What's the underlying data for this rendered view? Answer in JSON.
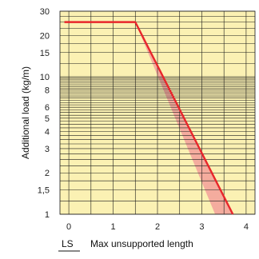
{
  "chart_data": {
    "type": "line",
    "ylabel": "Additional load (kg/m)",
    "x_symbol": "LS",
    "x_caption": "Max unsupported length",
    "xlim": [
      -0.2,
      4.2
    ],
    "ylim": [
      1,
      30
    ],
    "y_scale": "log",
    "grid": true,
    "x_ticks": [
      0,
      1,
      2,
      3,
      4
    ],
    "x_tick_labels": [
      "0",
      "1",
      "2",
      "3",
      "4"
    ],
    "y_ticks": [
      1,
      1.5,
      2,
      3,
      4,
      5,
      6,
      8,
      10,
      15,
      20,
      30
    ],
    "y_tick_labels": [
      "1",
      "1,5",
      "2",
      "3",
      "4",
      "5",
      "6",
      "8",
      "10",
      "15",
      "20",
      "30"
    ],
    "series": [
      {
        "values_x": [
          -0.1,
          1.5,
          3.7
        ],
        "values_y": [
          25,
          25,
          1
        ],
        "color": "#e8262b"
      }
    ],
    "band": {
      "x_upper": [
        1.5,
        3.7
      ],
      "y_upper": [
        25,
        1
      ],
      "x_lower": [
        1.5,
        3.3
      ],
      "y_lower": [
        25,
        1
      ],
      "color": "#f2a09a"
    },
    "colors": {
      "plot_background": "#fbf1b3",
      "grid": "#1a1a1a"
    }
  }
}
